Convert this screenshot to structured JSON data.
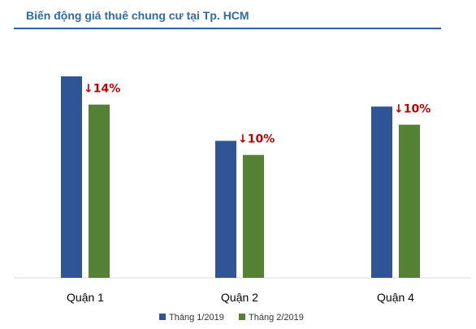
{
  "title": "Biến động giá thuê chung cư tại Tp. HCM",
  "chart_data": {
    "type": "bar",
    "categories": [
      "Quận 1",
      "Quận 2",
      "Quận 4"
    ],
    "series": [
      {
        "name": "Tháng 1/2019",
        "color": "#2f5597"
      },
      {
        "name": "Tháng 2/2019",
        "color": "#548235"
      }
    ],
    "annotations": [
      {
        "category": "Quận 1",
        "text": "↓14%",
        "color": "#c00000"
      },
      {
        "category": "Quận 2",
        "text": "↓10%",
        "color": "#c00000"
      },
      {
        "category": "Quận 4",
        "text": "↓10%",
        "color": "#c00000"
      }
    ],
    "values_shown": "relative bar heights only (no y-axis)",
    "relative_values": {
      "Tháng 1/2019": [
        100,
        68,
        85
      ],
      "Tháng 2/2019": [
        86,
        61,
        76
      ]
    },
    "grid": false,
    "legend_position": "bottom-center"
  }
}
